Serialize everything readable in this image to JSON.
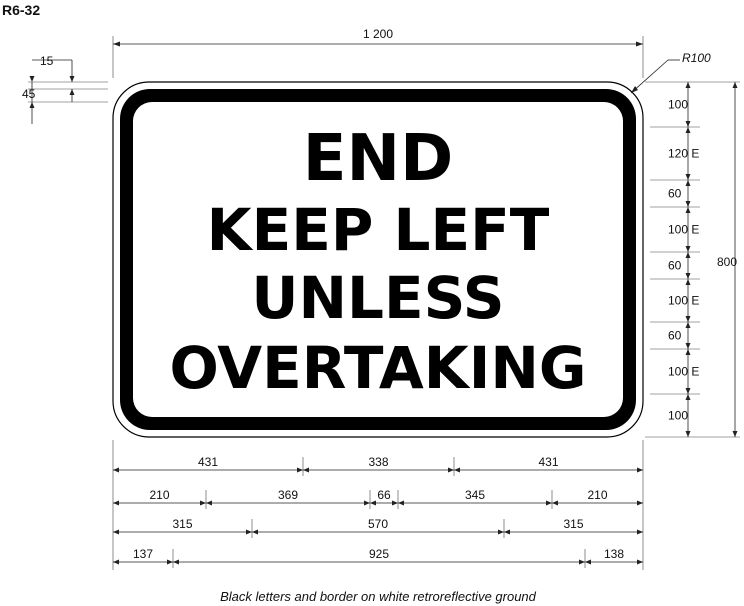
{
  "sign_code": "R6-32",
  "sign": {
    "lines": [
      "END",
      "KEEP LEFT",
      "UNLESS",
      "OVERTAKING"
    ],
    "colors": {
      "border": "#000000",
      "ground": "#ffffff",
      "text": "#000000"
    }
  },
  "dimensions": {
    "overall_width": "1 200",
    "overall_height": "800",
    "corner_radius": "R100",
    "border_outer": "15",
    "border_width": "45",
    "vertical": [
      "100",
      "120 E",
      "60",
      "100 E",
      "60",
      "100 E",
      "60",
      "100 E",
      "100"
    ],
    "row1": [
      "431",
      "338",
      "431"
    ],
    "row2": [
      "210",
      "369",
      "66",
      "345",
      "210"
    ],
    "row3": [
      "315",
      "570",
      "315"
    ],
    "row4": [
      "137",
      "925",
      "138"
    ]
  },
  "caption": "Black letters and border on white retroreflective ground"
}
